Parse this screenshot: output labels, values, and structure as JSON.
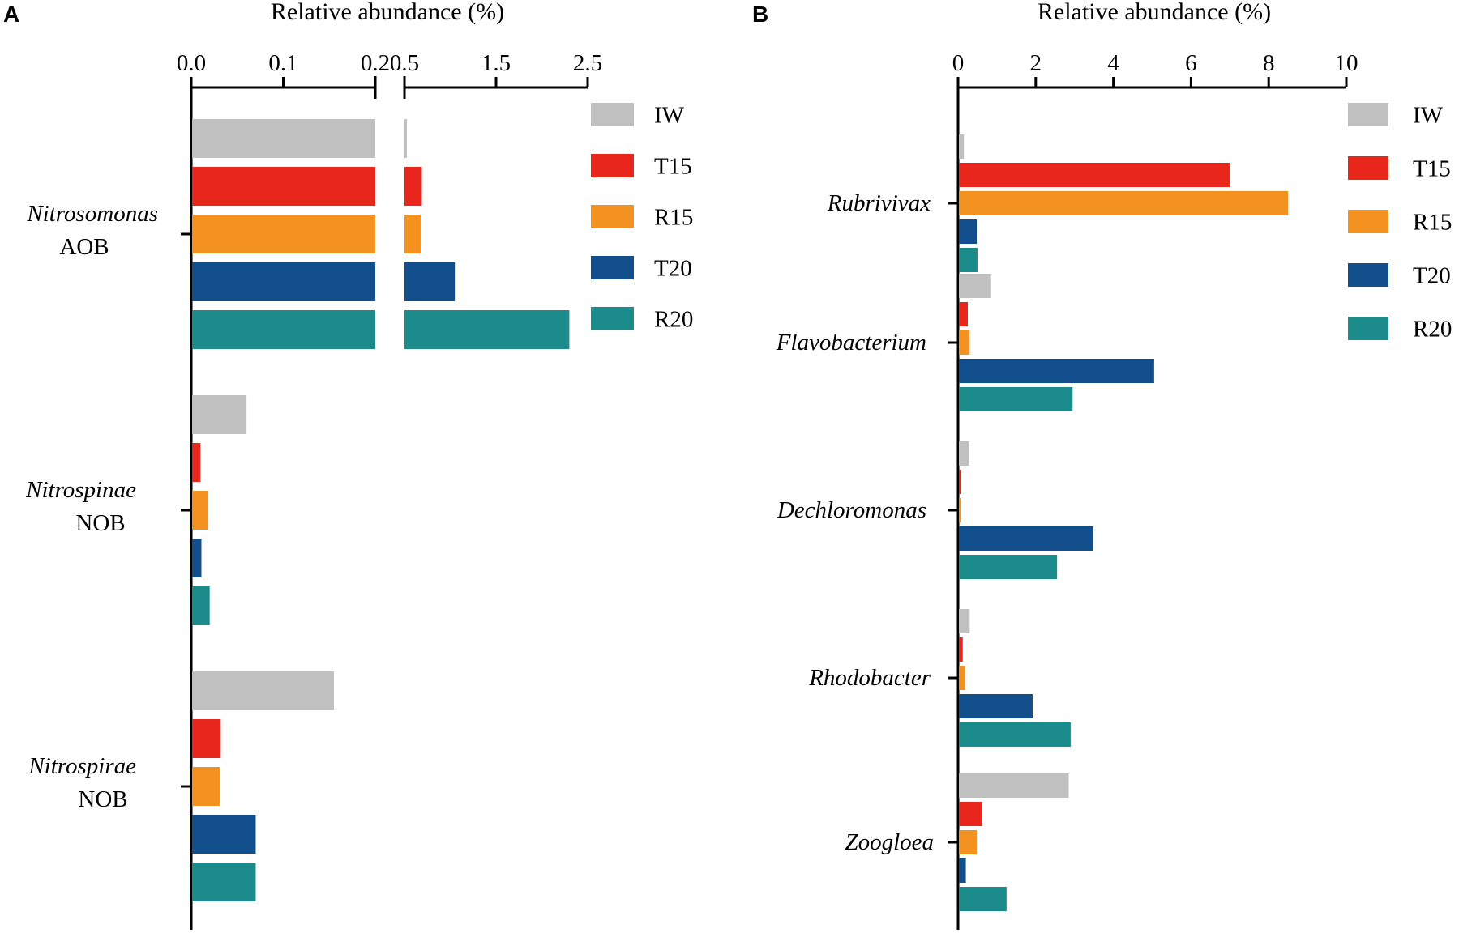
{
  "chart_data": [
    {
      "panel": "A",
      "type": "bar",
      "orientation": "horizontal",
      "xlabel": "Relative abundance (%)",
      "axis_break": true,
      "segments": [
        {
          "range": [
            0,
            0.2
          ],
          "ticks": [
            0.0,
            0.1,
            0.2
          ],
          "tick_labels": [
            "0.0",
            "0.1",
            "0.2"
          ]
        },
        {
          "range": [
            0.5,
            2.5
          ],
          "ticks": [
            0.5,
            1.5,
            2.5
          ],
          "tick_labels": [
            "0.5",
            "1.5",
            "2.5"
          ]
        }
      ],
      "categories": [
        {
          "name": "Nitrosomonas",
          "group": "AOB"
        },
        {
          "name": "Nitrospinae",
          "group": "NOB"
        },
        {
          "name": "Nitrospirae",
          "group": "NOB"
        }
      ],
      "series": [
        {
          "name": "IW",
          "color": "#c0c0c0",
          "values": [
            0.51,
            0.06,
            0.155
          ]
        },
        {
          "name": "T15",
          "color": "#e8261b",
          "values": [
            0.69,
            0.01,
            0.032
          ]
        },
        {
          "name": "R15",
          "color": "#f39220",
          "values": [
            0.68,
            0.018,
            0.031
          ]
        },
        {
          "name": "T20",
          "color": "#124d8c",
          "values": [
            1.05,
            0.011,
            0.07
          ]
        },
        {
          "name": "R20",
          "color": "#1b8b8b",
          "values": [
            2.3,
            0.02,
            0.07
          ]
        }
      ],
      "legend_position": "top-right"
    },
    {
      "panel": "B",
      "type": "bar",
      "orientation": "horizontal",
      "xlabel": "Relative abundance (%)",
      "xlim": [
        0,
        10
      ],
      "ticks": [
        0,
        2,
        4,
        6,
        8,
        10
      ],
      "tick_labels": [
        "0",
        "2",
        "4",
        "6",
        "8",
        "10"
      ],
      "categories": [
        {
          "name": "Rubrivivax",
          "group": ""
        },
        {
          "name": "Flavobacterium",
          "group": ""
        },
        {
          "name": "Dechloromonas",
          "group": ""
        },
        {
          "name": "Rhodobacter",
          "group": ""
        },
        {
          "name": "Zoogloea",
          "group": ""
        }
      ],
      "series": [
        {
          "name": "IW",
          "color": "#c0c0c0",
          "values": [
            0.15,
            0.85,
            0.28,
            0.3,
            2.85
          ]
        },
        {
          "name": "T15",
          "color": "#e8261b",
          "values": [
            7.0,
            0.25,
            0.08,
            0.12,
            0.62
          ]
        },
        {
          "name": "R15",
          "color": "#f39220",
          "values": [
            8.5,
            0.3,
            0.05,
            0.18,
            0.48
          ]
        },
        {
          "name": "T20",
          "color": "#124d8c",
          "values": [
            0.48,
            5.05,
            3.48,
            1.92,
            0.2
          ]
        },
        {
          "name": "R20",
          "color": "#1b8b8b",
          "values": [
            0.5,
            2.95,
            2.55,
            2.9,
            1.25
          ]
        }
      ],
      "legend_position": "top-right"
    }
  ]
}
